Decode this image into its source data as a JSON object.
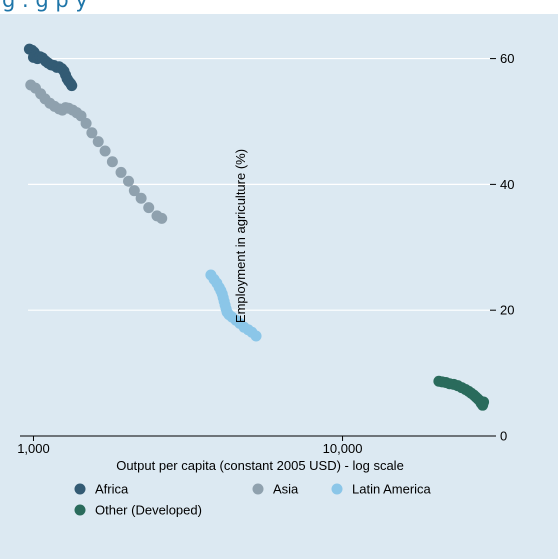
{
  "header": {
    "title_partial": "g       .                          g          p  y"
  },
  "chart_data": {
    "type": "scatter",
    "title": "",
    "xlabel": "Output per capita (constant 2005 USD) - log scale",
    "ylabel": "Employment in agriculture (%)",
    "x_scale": "log",
    "xlim": [
      960,
      30000
    ],
    "ylim": [
      0,
      62
    ],
    "x_ticks": [
      {
        "value": 1000,
        "label": "1,000"
      },
      {
        "value": 10000,
        "label": "10,000"
      }
    ],
    "y_ticks": [
      {
        "value": 0,
        "label": "0"
      },
      {
        "value": 20,
        "label": "20"
      },
      {
        "value": 40,
        "label": "40"
      },
      {
        "value": 60,
        "label": "60"
      }
    ],
    "y_axis_side": "right",
    "grid": "horizontal",
    "legend_position": "bottom",
    "series": [
      {
        "name": "Africa",
        "color": "#335b74",
        "points": [
          [
            970,
            61.5
          ],
          [
            990,
            61.3
          ],
          [
            1005,
            61.0
          ],
          [
            1015,
            60.6
          ],
          [
            1000,
            60.2
          ],
          [
            1030,
            60.0
          ],
          [
            1050,
            60.3
          ],
          [
            1070,
            60.1
          ],
          [
            1095,
            59.6
          ],
          [
            1115,
            59.3
          ],
          [
            1140,
            59.0
          ],
          [
            1165,
            58.9
          ],
          [
            1190,
            58.6
          ],
          [
            1210,
            58.7
          ],
          [
            1235,
            58.4
          ],
          [
            1255,
            58.0
          ],
          [
            1270,
            57.4
          ],
          [
            1285,
            56.8
          ],
          [
            1300,
            56.4
          ],
          [
            1320,
            56.0
          ],
          [
            1330,
            55.7
          ]
        ]
      },
      {
        "name": "Asia",
        "color": "#8fa1ae",
        "points": [
          [
            980,
            55.8
          ],
          [
            1015,
            55.3
          ],
          [
            1055,
            54.4
          ],
          [
            1090,
            53.6
          ],
          [
            1130,
            52.9
          ],
          [
            1170,
            52.4
          ],
          [
            1210,
            52.0
          ],
          [
            1240,
            51.8
          ],
          [
            1270,
            52.2
          ],
          [
            1300,
            52.1
          ],
          [
            1340,
            51.8
          ],
          [
            1380,
            51.4
          ],
          [
            1425,
            50.9
          ],
          [
            1480,
            49.7
          ],
          [
            1545,
            48.2
          ],
          [
            1620,
            46.8
          ],
          [
            1705,
            45.3
          ],
          [
            1800,
            43.6
          ],
          [
            1920,
            41.9
          ],
          [
            2030,
            40.5
          ],
          [
            2120,
            39.0
          ],
          [
            2230,
            37.8
          ],
          [
            2360,
            36.3
          ],
          [
            2510,
            35.0
          ],
          [
            2600,
            34.6
          ]
        ]
      },
      {
        "name": "Latin America",
        "color": "#8bc6e8",
        "points": [
          [
            3750,
            25.6
          ],
          [
            3840,
            24.9
          ],
          [
            3920,
            24.3
          ],
          [
            3990,
            23.6
          ],
          [
            4040,
            23.1
          ],
          [
            4080,
            22.6
          ],
          [
            4110,
            22.0
          ],
          [
            4140,
            21.4
          ],
          [
            4170,
            20.8
          ],
          [
            4200,
            20.2
          ],
          [
            4230,
            19.7
          ],
          [
            4290,
            19.3
          ],
          [
            4390,
            18.9
          ],
          [
            4520,
            18.4
          ],
          [
            4650,
            17.9
          ],
          [
            4800,
            17.3
          ],
          [
            4950,
            16.9
          ],
          [
            5090,
            16.5
          ],
          [
            5250,
            15.9
          ]
        ]
      },
      {
        "name": "Other (Developed)",
        "color": "#2a6b5c",
        "points": [
          [
            20500,
            8.7
          ],
          [
            21000,
            8.6
          ],
          [
            21600,
            8.5
          ],
          [
            22200,
            8.3
          ],
          [
            22900,
            8.2
          ],
          [
            23600,
            8.0
          ],
          [
            24300,
            7.7
          ],
          [
            25000,
            7.4
          ],
          [
            25600,
            7.1
          ],
          [
            26100,
            6.8
          ],
          [
            26600,
            6.5
          ],
          [
            27000,
            6.2
          ],
          [
            27400,
            5.9
          ],
          [
            27800,
            5.6
          ],
          [
            28100,
            5.2
          ],
          [
            28400,
            4.9
          ],
          [
            28600,
            5.4
          ]
        ]
      }
    ]
  }
}
